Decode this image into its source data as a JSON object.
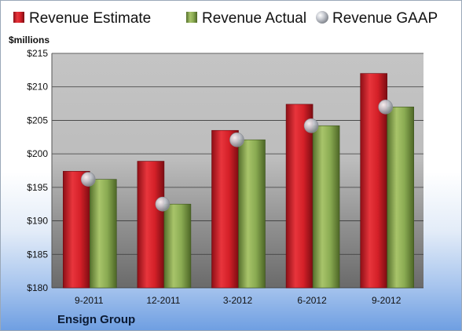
{
  "chart_data": {
    "type": "bar",
    "unit_label": "$millions",
    "categories": [
      "9-2011",
      "12-2011",
      "3-2012",
      "6-2012",
      "9-2012"
    ],
    "series": [
      {
        "name": "Revenue Estimate",
        "type": "bar",
        "color": "#c8202a",
        "values": [
          197.4,
          198.9,
          203.5,
          207.4,
          212.0
        ]
      },
      {
        "name": "Revenue Actual",
        "type": "bar",
        "color": "#7fa04a",
        "values": [
          196.2,
          192.5,
          202.1,
          204.2,
          207.0
        ]
      },
      {
        "name": "Revenue GAAP",
        "type": "marker",
        "color": "#b9bcc4",
        "values": [
          196.2,
          192.5,
          202.1,
          204.2,
          207.0
        ]
      }
    ],
    "ylim": [
      180,
      215
    ],
    "yticks": [
      180,
      185,
      190,
      195,
      200,
      205,
      210,
      215
    ],
    "ytick_labels": [
      "$180",
      "$185",
      "$190",
      "$195",
      "$200",
      "$205",
      "$210",
      "$215"
    ],
    "grid": true,
    "legend_position": "top"
  },
  "company_name": "Ensign Group"
}
